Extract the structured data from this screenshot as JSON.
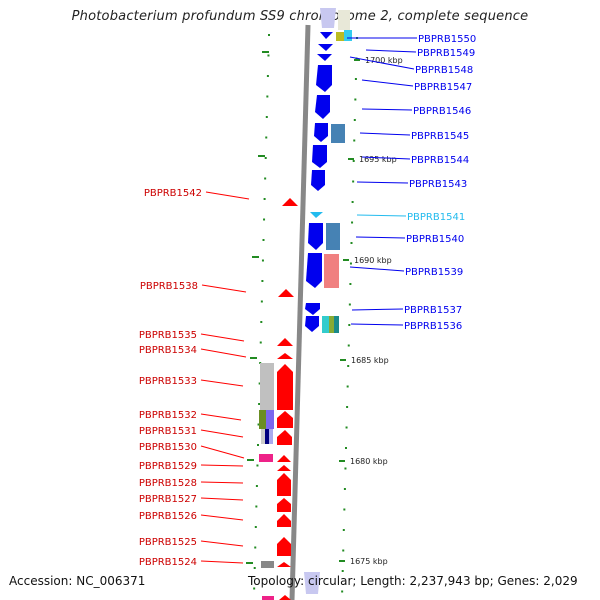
{
  "title": "Photobacterium profundum SS9 chromosome 2, complete sequence",
  "footer": {
    "accession": "Accession: NC_006371",
    "summary": "Topology: circular; Length: 2,237,943 bp; Genes: 2,029"
  },
  "colors": {
    "forward": "#0000ee",
    "reverse": "#ff0000",
    "highlight_label": "#22bbee",
    "backbone": "#888888",
    "ticks": "#228b22"
  },
  "scale_labels": [
    "1700 kbp",
    "1695 kbp",
    "1690 kbp",
    "1685 kbp",
    "1680 kbp",
    "1675 kbp"
  ],
  "forward_genes": [
    "PBPRB1550",
    "PBPRB1549",
    "PBPRB1548",
    "PBPRB1547",
    "PBPRB1546",
    "PBPRB1545",
    "PBPRB1544",
    "PBPRB1543",
    "PBPRB1541",
    "PBPRB1540",
    "PBPRB1539",
    "PBPRB1537",
    "PBPRB1536"
  ],
  "reverse_genes": [
    "PBPRB1542",
    "PBPRB1538",
    "PBPRB1535",
    "PBPRB1534",
    "PBPRB1533",
    "PBPRB1532",
    "PBPRB1531",
    "PBPRB1530",
    "PBPRB1529",
    "PBPRB1528",
    "PBPRB1527",
    "PBPRB1526",
    "PBPRB1525",
    "PBPRB1524"
  ]
}
